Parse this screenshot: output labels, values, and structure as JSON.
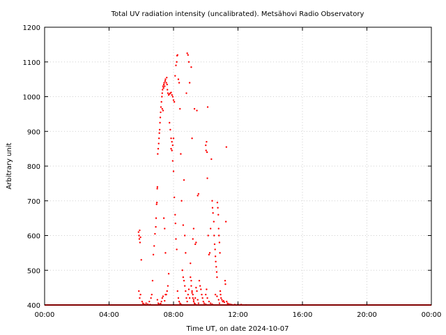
{
  "chart_data": {
    "type": "scatter",
    "title": "Total UV radiation intensity (uncalibrated). Metsähovi Radio Observatory",
    "xlabel": "Time UT, on date 2024-10-07",
    "ylabel": "Arbitrary unit",
    "xlim_hours": [
      0,
      24
    ],
    "ylim": [
      400,
      1200
    ],
    "xticks": [
      {
        "hour": 0,
        "label": "00:00"
      },
      {
        "hour": 4,
        "label": "04:00"
      },
      {
        "hour": 8,
        "label": "08:00"
      },
      {
        "hour": 12,
        "label": "12:00"
      },
      {
        "hour": 16,
        "label": "16:00"
      },
      {
        "hour": 20,
        "label": "20:00"
      },
      {
        "hour": 24,
        "label": "00:00"
      }
    ],
    "yticks": [
      {
        "value": 400,
        "label": "400"
      },
      {
        "value": 500,
        "label": "500"
      },
      {
        "value": 600,
        "label": "600"
      },
      {
        "value": 700,
        "label": "700"
      },
      {
        "value": 800,
        "label": "800"
      },
      {
        "value": 900,
        "label": "900"
      },
      {
        "value": 1000,
        "label": "1000"
      },
      {
        "value": 1100,
        "label": "1100"
      },
      {
        "value": 1200,
        "label": "1200"
      }
    ],
    "grid": true,
    "color": "#ff0000",
    "series": [
      {
        "points": [
          [
            5.83,
            610
          ],
          [
            5.86,
            600
          ],
          [
            5.88,
            590
          ],
          [
            5.9,
            615
          ],
          [
            5.92,
            580
          ],
          [
            5.95,
            595
          ],
          [
            6.0,
            530
          ],
          [
            5.85,
            440
          ],
          [
            5.9,
            420
          ],
          [
            5.95,
            430
          ],
          [
            6.7,
            470
          ],
          [
            6.75,
            545
          ],
          [
            6.8,
            570
          ],
          [
            6.85,
            605
          ],
          [
            6.9,
            625
          ],
          [
            6.92,
            650
          ],
          [
            6.95,
            690
          ],
          [
            6.97,
            695
          ],
          [
            6.99,
            735
          ],
          [
            7.0,
            740
          ],
          [
            7.02,
            835
          ],
          [
            7.05,
            850
          ],
          [
            7.08,
            865
          ],
          [
            7.1,
            880
          ],
          [
            7.12,
            895
          ],
          [
            7.14,
            905
          ],
          [
            7.16,
            925
          ],
          [
            7.18,
            940
          ],
          [
            7.2,
            955
          ],
          [
            7.22,
            970
          ],
          [
            7.25,
            985
          ],
          [
            7.28,
            1000
          ],
          [
            7.3,
            1010
          ],
          [
            7.32,
            1020
          ],
          [
            7.35,
            1030
          ],
          [
            7.38,
            1025
          ],
          [
            7.4,
            1035
          ],
          [
            7.42,
            1040
          ],
          [
            7.45,
            1030
          ],
          [
            7.48,
            1045
          ],
          [
            7.5,
            1050
          ],
          [
            7.55,
            1040
          ],
          [
            7.58,
            1055
          ],
          [
            7.6,
            1035
          ],
          [
            7.62,
            1020
          ],
          [
            7.65,
            1010
          ],
          [
            7.7,
            1005
          ],
          [
            7.75,
            1008
          ],
          [
            7.8,
            1010
          ],
          [
            7.85,
            1012
          ],
          [
            7.9,
            1005
          ],
          [
            7.95,
            1000
          ],
          [
            8.0,
            990
          ],
          [
            8.05,
            985
          ],
          [
            7.3,
            965
          ],
          [
            7.35,
            960
          ],
          [
            7.4,
            650
          ],
          [
            7.45,
            620
          ],
          [
            7.5,
            550
          ],
          [
            7.55,
            430
          ],
          [
            7.6,
            440
          ],
          [
            7.65,
            455
          ],
          [
            7.7,
            490
          ],
          [
            7.75,
            925
          ],
          [
            7.8,
            905
          ],
          [
            7.85,
            850
          ],
          [
            7.9,
            845
          ],
          [
            7.95,
            815
          ],
          [
            8.0,
            785
          ],
          [
            8.05,
            710
          ],
          [
            8.1,
            660
          ],
          [
            8.12,
            635
          ],
          [
            8.15,
            590
          ],
          [
            8.2,
            560
          ],
          [
            8.25,
            440
          ],
          [
            8.3,
            420
          ],
          [
            8.35,
            410
          ],
          [
            8.4,
            405
          ],
          [
            8.45,
            402
          ],
          [
            8.5,
            400
          ],
          [
            7.85,
            880
          ],
          [
            7.9,
            870
          ],
          [
            7.95,
            860
          ],
          [
            8.0,
            880
          ],
          [
            8.1,
            1060
          ],
          [
            8.15,
            1090
          ],
          [
            8.2,
            1100
          ],
          [
            8.22,
            1118
          ],
          [
            8.25,
            1120
          ],
          [
            8.3,
            1050
          ],
          [
            8.35,
            1040
          ],
          [
            8.4,
            965
          ],
          [
            8.45,
            835
          ],
          [
            8.5,
            700
          ],
          [
            8.6,
            630
          ],
          [
            8.65,
            760
          ],
          [
            8.7,
            600
          ],
          [
            8.75,
            550
          ],
          [
            8.8,
            1010
          ],
          [
            8.85,
            1125
          ],
          [
            8.9,
            1120
          ],
          [
            8.95,
            1100
          ],
          [
            9.0,
            1040
          ],
          [
            9.05,
            480
          ],
          [
            9.1,
            470
          ],
          [
            9.15,
            440
          ],
          [
            9.2,
            430
          ],
          [
            9.25,
            415
          ],
          [
            9.3,
            405
          ],
          [
            9.35,
            402
          ],
          [
            8.55,
            500
          ],
          [
            8.6,
            480
          ],
          [
            8.65,
            470
          ],
          [
            8.7,
            455
          ],
          [
            8.75,
            440
          ],
          [
            8.8,
            420
          ],
          [
            8.85,
            410
          ],
          [
            8.9,
            430
          ],
          [
            8.95,
            445
          ],
          [
            9.0,
            420
          ],
          [
            9.05,
            520
          ],
          [
            9.1,
            1085
          ],
          [
            9.15,
            880
          ],
          [
            9.2,
            590
          ],
          [
            9.25,
            620
          ],
          [
            9.3,
            965
          ],
          [
            9.35,
            575
          ],
          [
            9.4,
            580
          ],
          [
            9.45,
            960
          ],
          [
            9.5,
            715
          ],
          [
            9.55,
            720
          ],
          [
            9.6,
            470
          ],
          [
            9.65,
            455
          ],
          [
            9.7,
            445
          ],
          [
            9.75,
            430
          ],
          [
            9.8,
            420
          ],
          [
            9.85,
            410
          ],
          [
            9.9,
            405
          ],
          [
            9.95,
            400
          ],
          [
            10.0,
            402
          ],
          [
            9.1,
            455
          ],
          [
            9.15,
            435
          ],
          [
            9.2,
            420
          ],
          [
            9.25,
            410
          ],
          [
            9.3,
            405
          ],
          [
            9.35,
            420
          ],
          [
            9.4,
            450
          ],
          [
            9.45,
            440
          ],
          [
            9.5,
            415
          ],
          [
            9.55,
            405
          ],
          [
            10.0,
            860
          ],
          [
            10.02,
            845
          ],
          [
            10.05,
            870
          ],
          [
            10.08,
            840
          ],
          [
            10.1,
            765
          ],
          [
            10.12,
            970
          ],
          [
            10.15,
            600
          ],
          [
            10.2,
            545
          ],
          [
            10.25,
            550
          ],
          [
            10.3,
            620
          ],
          [
            10.35,
            820
          ],
          [
            10.4,
            700
          ],
          [
            10.42,
            680
          ],
          [
            10.45,
            665
          ],
          [
            10.5,
            640
          ],
          [
            10.52,
            600
          ],
          [
            10.55,
            575
          ],
          [
            10.58,
            560
          ],
          [
            10.6,
            540
          ],
          [
            10.62,
            525
          ],
          [
            10.65,
            510
          ],
          [
            10.68,
            495
          ],
          [
            10.7,
            480
          ],
          [
            10.72,
            695
          ],
          [
            10.75,
            680
          ],
          [
            10.78,
            660
          ],
          [
            10.8,
            620
          ],
          [
            10.82,
            600
          ],
          [
            10.85,
            580
          ],
          [
            10.88,
            550
          ],
          [
            10.9,
            440
          ],
          [
            10.92,
            430
          ],
          [
            10.95,
            420
          ],
          [
            11.0,
            415
          ],
          [
            11.05,
            410
          ],
          [
            11.1,
            412
          ],
          [
            11.15,
            408
          ],
          [
            11.2,
            470
          ],
          [
            11.22,
            460
          ],
          [
            11.25,
            640
          ],
          [
            11.28,
            855
          ],
          [
            11.3,
            410
          ],
          [
            11.35,
            405
          ],
          [
            11.4,
            403
          ],
          [
            11.5,
            402
          ],
          [
            11.6,
            401
          ],
          [
            11.8,
            401
          ],
          [
            12.0,
            401
          ],
          [
            12.2,
            401
          ],
          [
            12.5,
            400
          ],
          [
            10.0,
            430
          ],
          [
            10.05,
            445
          ],
          [
            10.1,
            420
          ],
          [
            10.2,
            410
          ],
          [
            10.3,
            405
          ],
          [
            10.4,
            402
          ],
          [
            10.6,
            430
          ],
          [
            10.7,
            425
          ],
          [
            10.8,
            415
          ],
          [
            10.85,
            405
          ],
          [
            6.05,
            410
          ],
          [
            6.1,
            405
          ],
          [
            6.15,
            402
          ],
          [
            6.2,
            401
          ],
          [
            6.3,
            405
          ],
          [
            6.4,
            402
          ],
          [
            6.5,
            410
          ],
          [
            6.6,
            420
          ],
          [
            6.65,
            430
          ],
          [
            6.55,
            401
          ],
          [
            7.0,
            415
          ],
          [
            7.05,
            405
          ],
          [
            7.1,
            402
          ],
          [
            7.15,
            401
          ],
          [
            7.2,
            404
          ],
          [
            7.25,
            410
          ],
          [
            7.3,
            420
          ],
          [
            7.35,
            425
          ],
          [
            7.45,
            412
          ],
          [
            7.5,
            430
          ]
        ]
      }
    ],
    "baseline_value": 400
  }
}
